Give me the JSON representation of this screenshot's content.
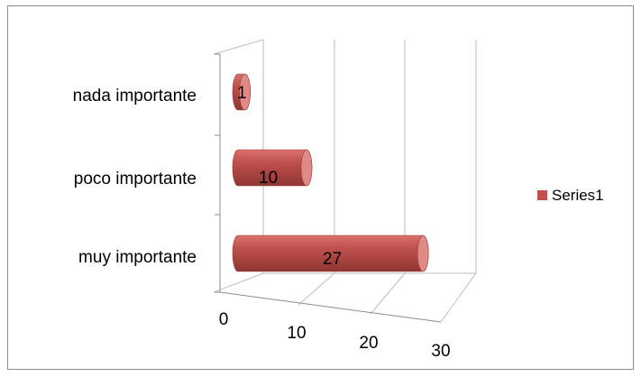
{
  "chart_data": {
    "type": "bar",
    "orientation": "horizontal",
    "style": "3d-cylinder",
    "categories": [
      "nada importante",
      "poco importante",
      "muy importante"
    ],
    "series": [
      {
        "name": "Series1",
        "values": [
          1,
          10,
          27
        ]
      }
    ],
    "data_labels": [
      "1",
      "10",
      "27"
    ],
    "x_ticks": [
      "0",
      "10",
      "20",
      "30"
    ],
    "xlim": [
      0,
      30
    ],
    "grid": true,
    "legend_position": "right",
    "colors": {
      "series": "#c0504d",
      "series_dark": "#9b3b38",
      "series_light": "#e08a86"
    }
  }
}
